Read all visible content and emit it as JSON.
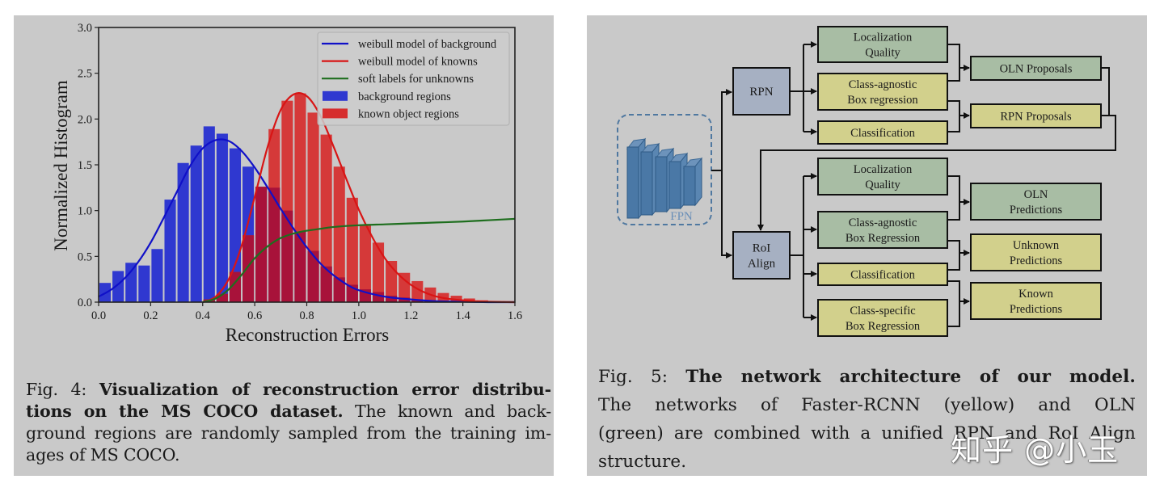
{
  "figure_left": {
    "caption": {
      "label": "Fig. 4:",
      "bold": "Visualization of reconstruction error distributions on the MS COCO dataset.",
      "text": "The known and background regions are randomly sampled from the training images of MS COCO.",
      "lines": [
        {
          "label": "Fig. 4: ",
          "bold": "Visualization of reconstruction error distribu-",
          "rest": ""
        },
        {
          "label": "",
          "bold": "tions on the MS COCO dataset.",
          "rest": " The known and back-"
        },
        {
          "label": "",
          "bold": "",
          "rest": "ground regions are randomly sampled from the training im-"
        },
        {
          "label": "",
          "bold": "",
          "rest": "ages of MS COCO."
        }
      ]
    }
  },
  "chart_data": {
    "type": "bar",
    "title": "",
    "xlabel": "Reconstruction Errors",
    "ylabel": "Normalized Histogram",
    "xlim": [
      0.0,
      1.6
    ],
    "ylim": [
      0.0,
      3.0
    ],
    "xticks": [
      "0.0",
      "0.2",
      "0.4",
      "0.6",
      "0.8",
      "1.0",
      "1.2",
      "1.4",
      "1.6"
    ],
    "yticks": [
      "0.0",
      "0.5",
      "1.0",
      "1.5",
      "2.0",
      "2.5",
      "3.0"
    ],
    "grid": false,
    "legend_position": "upper right",
    "bin_width": 0.05,
    "bin_starts": [
      0.0,
      0.05,
      0.1,
      0.15,
      0.2,
      0.25,
      0.3,
      0.35,
      0.4,
      0.45,
      0.5,
      0.55,
      0.6,
      0.65,
      0.7,
      0.75,
      0.8,
      0.85,
      0.9,
      0.95,
      1.0,
      1.05,
      1.1,
      1.15,
      1.2,
      1.25,
      1.3,
      1.35,
      1.4,
      1.45,
      1.5,
      1.55
    ],
    "series": [
      {
        "name": "background regions",
        "kind": "histogram",
        "color": "#2f38d0",
        "values": [
          0.21,
          0.34,
          0.43,
          0.4,
          0.58,
          1.12,
          1.52,
          1.71,
          1.92,
          1.84,
          1.68,
          1.48,
          1.26,
          1.25,
          1.0,
          0.77,
          0.56,
          0.39,
          0.27,
          0.19,
          0.14,
          0.11,
          0.07,
          0.05,
          0.03,
          0.02,
          0.01,
          0.01,
          0.0,
          0.0,
          0.0,
          0.0
        ]
      },
      {
        "name": "known object regions",
        "kind": "histogram",
        "color": "#d62d2d",
        "values": [
          0,
          0,
          0,
          0,
          0,
          0,
          0,
          0,
          0.03,
          0.09,
          0.33,
          0.73,
          1.26,
          1.89,
          2.2,
          2.28,
          2.07,
          1.83,
          1.48,
          1.14,
          0.85,
          0.65,
          0.45,
          0.32,
          0.23,
          0.16,
          0.1,
          0.07,
          0.04,
          0.02,
          0.01,
          0.01
        ]
      },
      {
        "name": "weibull model of background",
        "kind": "line",
        "color": "#1010c8",
        "x": [
          0.0,
          0.05,
          0.1,
          0.15,
          0.2,
          0.25,
          0.3,
          0.35,
          0.4,
          0.45,
          0.5,
          0.55,
          0.6,
          0.65,
          0.7,
          0.75,
          0.8,
          0.85,
          0.9,
          0.95,
          1.0,
          1.1,
          1.2,
          1.3,
          1.4,
          1.5,
          1.6
        ],
        "y": [
          0.06,
          0.14,
          0.26,
          0.43,
          0.65,
          0.92,
          1.2,
          1.48,
          1.68,
          1.77,
          1.76,
          1.65,
          1.47,
          1.25,
          1.02,
          0.8,
          0.6,
          0.43,
          0.3,
          0.2,
          0.13,
          0.06,
          0.03,
          0.01,
          0.005,
          0.0,
          0.0
        ]
      },
      {
        "name": "weibull model of knowns",
        "kind": "line",
        "color": "#d81515",
        "x": [
          0.4,
          0.45,
          0.5,
          0.55,
          0.6,
          0.65,
          0.7,
          0.75,
          0.8,
          0.85,
          0.9,
          0.95,
          1.0,
          1.05,
          1.1,
          1.15,
          1.2,
          1.25,
          1.3,
          1.35,
          1.4,
          1.45,
          1.5,
          1.55,
          1.6
        ],
        "y": [
          0.0,
          0.06,
          0.25,
          0.62,
          1.15,
          1.7,
          2.1,
          2.27,
          2.25,
          2.05,
          1.72,
          1.36,
          1.01,
          0.72,
          0.48,
          0.31,
          0.19,
          0.11,
          0.06,
          0.035,
          0.02,
          0.01,
          0.005,
          0.002,
          0.0
        ]
      },
      {
        "name": "soft labels for unknowns",
        "kind": "line",
        "color": "#1e6e1e",
        "x": [
          0.4,
          0.45,
          0.5,
          0.55,
          0.6,
          0.65,
          0.7,
          0.75,
          0.8,
          0.85,
          0.9,
          1.0,
          1.1,
          1.2,
          1.3,
          1.4,
          1.5,
          1.6
        ],
        "y": [
          0.0,
          0.04,
          0.14,
          0.3,
          0.48,
          0.61,
          0.7,
          0.75,
          0.78,
          0.8,
          0.82,
          0.84,
          0.85,
          0.86,
          0.87,
          0.88,
          0.895,
          0.91
        ]
      }
    ],
    "legend": [
      {
        "label": "weibull model of background",
        "kind": "line",
        "color": "#1010c8"
      },
      {
        "label": "weibull model of knowns",
        "kind": "line",
        "color": "#d81515"
      },
      {
        "label": "soft labels for unknowns",
        "kind": "line",
        "color": "#1e6e1e"
      },
      {
        "label": "background regions",
        "kind": "patch",
        "color": "#2f38d0"
      },
      {
        "label": "known object regions",
        "kind": "patch",
        "color": "#d62d2d"
      }
    ]
  },
  "figure_right": {
    "diagram": {
      "colors": {
        "green": "#a8bda4",
        "yellow": "#d2d08c",
        "blue": "#a6b0c2",
        "fpn": "#4f78a0",
        "line": "#111111"
      },
      "fpn_label": "FPN",
      "rpn_label": "RPN",
      "roi_label": [
        "RoI",
        "Align"
      ],
      "rpn_heads": [
        {
          "lines": [
            "Localization",
            "Quality"
          ],
          "color": "green"
        },
        {
          "lines": [
            "Class-agnostic",
            "Box regression"
          ],
          "color": "yellow"
        },
        {
          "lines": [
            "Classification"
          ],
          "color": "yellow"
        }
      ],
      "rpn_outputs": [
        {
          "lines": [
            "OLN Proposals"
          ],
          "color": "green"
        },
        {
          "lines": [
            "RPN Proposals"
          ],
          "color": "yellow"
        }
      ],
      "roi_heads": [
        {
          "lines": [
            "Localization",
            "Quality"
          ],
          "color": "green"
        },
        {
          "lines": [
            "Class-agnostic",
            "Box Regression"
          ],
          "color": "green"
        },
        {
          "lines": [
            "Classification"
          ],
          "color": "yellow"
        },
        {
          "lines": [
            "Class-specific",
            "Box Regression"
          ],
          "color": "yellow"
        }
      ],
      "roi_outputs": [
        {
          "lines": [
            "OLN",
            "Predictions"
          ],
          "color": "green"
        },
        {
          "lines": [
            "Unknown",
            "Predictions"
          ],
          "color": "yellow"
        },
        {
          "lines": [
            "Known",
            "Predictions"
          ],
          "color": "yellow"
        }
      ]
    },
    "caption": {
      "lines": [
        {
          "label": "Fig. 5: ",
          "bold": "The network architecture of our model.",
          "rest": ""
        },
        {
          "label": "",
          "bold": "",
          "rest": "The networks of Faster-RCNN (yellow) and OLN"
        },
        {
          "label": "",
          "bold": "",
          "rest": "(green) are combined with a unified RPN and RoI Align"
        },
        {
          "label": "",
          "bold": "",
          "rest": "structure."
        }
      ]
    }
  },
  "watermark": "知乎 @小玉"
}
